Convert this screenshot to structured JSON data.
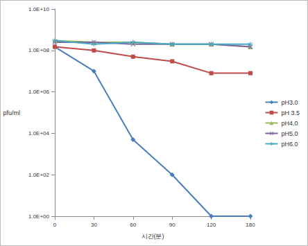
{
  "chart_data": {
    "type": "line",
    "x_label": "시간(분)",
    "y_label": "pfu/ml",
    "categories": [
      "0",
      "30",
      "60",
      "90",
      "120",
      "180"
    ],
    "log": "y",
    "grid": false,
    "legend": "right",
    "ylim": [
      1,
      10000000000
    ],
    "yticks": [
      {
        "value": 1,
        "label": "1.0E+00"
      },
      {
        "value": 100,
        "label": "1.0E+02"
      },
      {
        "value": 10000,
        "label": "1.0E+04"
      },
      {
        "value": 1000000,
        "label": "1.0E+06"
      },
      {
        "value": 100000000,
        "label": "1.0E+08"
      },
      {
        "value": 10000000000,
        "label": "1.0E+10"
      }
    ],
    "series": [
      {
        "name": "pH3.0",
        "color": "#4a7ebb",
        "marker": "diamond",
        "values": [
          150000000,
          10000000,
          5000,
          100,
          1,
          1
        ]
      },
      {
        "name": "pH 3.5",
        "color": "#be4b48",
        "marker": "square",
        "values": [
          150000000,
          100000000,
          50000000,
          30000000,
          8000000,
          8000000
        ]
      },
      {
        "name": "pH4.0",
        "color": "#98b954",
        "marker": "triangle",
        "values": [
          300000000,
          250000000,
          250000000,
          200000000,
          200000000,
          150000000
        ]
      },
      {
        "name": "pH5.0",
        "color": "#7d60a0",
        "marker": "x",
        "values": [
          250000000,
          250000000,
          200000000,
          200000000,
          200000000,
          150000000
        ]
      },
      {
        "name": "pH6.0",
        "color": "#46aac5",
        "marker": "star",
        "values": [
          300000000,
          200000000,
          250000000,
          200000000,
          200000000,
          200000000
        ]
      }
    ]
  }
}
